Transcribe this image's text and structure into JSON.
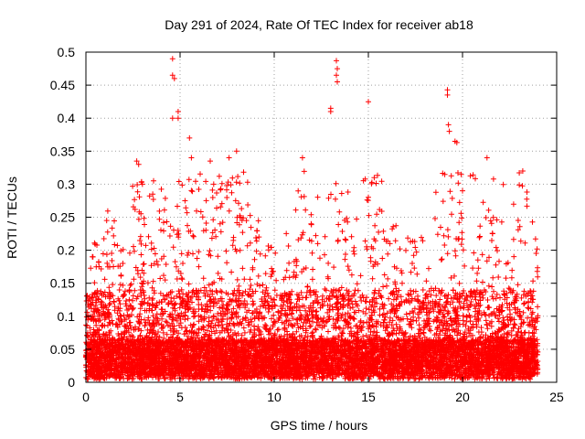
{
  "chart_data": {
    "type": "scatter",
    "title": "Day 291 of 2024, Rate Of TEC Index for receiver ab18",
    "xlabel": "GPS time / hours",
    "ylabel": "ROTI / TECUs",
    "xlim": [
      0,
      25
    ],
    "ylim": [
      0,
      0.5
    ],
    "xticks": [
      0,
      5,
      10,
      15,
      20,
      25
    ],
    "yticks": [
      0,
      0.05,
      0.1,
      0.15,
      0.2,
      0.25,
      0.3,
      0.35,
      0.4,
      0.45,
      0.5
    ],
    "grid": true,
    "marker": "+",
    "color": "#ff0000",
    "x_data_range": [
      0,
      24
    ],
    "envelope_hourly_max": [
      {
        "x": 0,
        "y": 0.145
      },
      {
        "x": 1,
        "y": 0.25
      },
      {
        "x": 2,
        "y": 0.2
      },
      {
        "x": 2.7,
        "y": 0.335
      },
      {
        "x": 3.5,
        "y": 0.27
      },
      {
        "x": 4.6,
        "y": 0.49
      },
      {
        "x": 5,
        "y": 0.41
      },
      {
        "x": 5.6,
        "y": 0.37
      },
      {
        "x": 6.5,
        "y": 0.335
      },
      {
        "x": 7.5,
        "y": 0.34
      },
      {
        "x": 8,
        "y": 0.35
      },
      {
        "x": 9,
        "y": 0.25
      },
      {
        "x": 10,
        "y": 0.2
      },
      {
        "x": 11,
        "y": 0.21
      },
      {
        "x": 11.5,
        "y": 0.34
      },
      {
        "x": 12.5,
        "y": 0.3
      },
      {
        "x": 13.3,
        "y": 0.49
      },
      {
        "x": 14,
        "y": 0.28
      },
      {
        "x": 15,
        "y": 0.425
      },
      {
        "x": 16,
        "y": 0.25
      },
      {
        "x": 17,
        "y": 0.2
      },
      {
        "x": 18,
        "y": 0.2
      },
      {
        "x": 19.2,
        "y": 0.445
      },
      {
        "x": 19.6,
        "y": 0.365
      },
      {
        "x": 20.5,
        "y": 0.3
      },
      {
        "x": 21.3,
        "y": 0.34
      },
      {
        "x": 22,
        "y": 0.29
      },
      {
        "x": 23,
        "y": 0.32
      },
      {
        "x": 24,
        "y": 0.2
      }
    ],
    "notable_points": [
      {
        "x": 4.6,
        "y": 0.49
      },
      {
        "x": 4.6,
        "y": 0.465
      },
      {
        "x": 4.7,
        "y": 0.46
      },
      {
        "x": 4.9,
        "y": 0.41
      },
      {
        "x": 4.9,
        "y": 0.4
      },
      {
        "x": 4.6,
        "y": 0.4
      },
      {
        "x": 13.3,
        "y": 0.487
      },
      {
        "x": 13.35,
        "y": 0.475
      },
      {
        "x": 13.3,
        "y": 0.465
      },
      {
        "x": 13.35,
        "y": 0.455
      },
      {
        "x": 13.0,
        "y": 0.415
      },
      {
        "x": 13.0,
        "y": 0.41
      },
      {
        "x": 15.0,
        "y": 0.425
      },
      {
        "x": 19.2,
        "y": 0.443
      },
      {
        "x": 19.2,
        "y": 0.435
      },
      {
        "x": 19.25,
        "y": 0.39
      },
      {
        "x": 19.3,
        "y": 0.38
      },
      {
        "x": 19.6,
        "y": 0.365
      },
      {
        "x": 19.7,
        "y": 0.363
      },
      {
        "x": 2.7,
        "y": 0.335
      },
      {
        "x": 2.8,
        "y": 0.33
      },
      {
        "x": 3.0,
        "y": 0.3
      },
      {
        "x": 5.5,
        "y": 0.37
      },
      {
        "x": 5.6,
        "y": 0.34
      },
      {
        "x": 6.6,
        "y": 0.335
      },
      {
        "x": 8.0,
        "y": 0.35
      },
      {
        "x": 7.6,
        "y": 0.34
      },
      {
        "x": 11.5,
        "y": 0.34
      },
      {
        "x": 21.3,
        "y": 0.34
      },
      {
        "x": 23.2,
        "y": 0.32
      },
      {
        "x": 15.0,
        "y": 0.28
      },
      {
        "x": 20.0,
        "y": 0.29
      },
      {
        "x": 1.1,
        "y": 0.245
      },
      {
        "x": 8.2,
        "y": 0.25
      }
    ]
  }
}
